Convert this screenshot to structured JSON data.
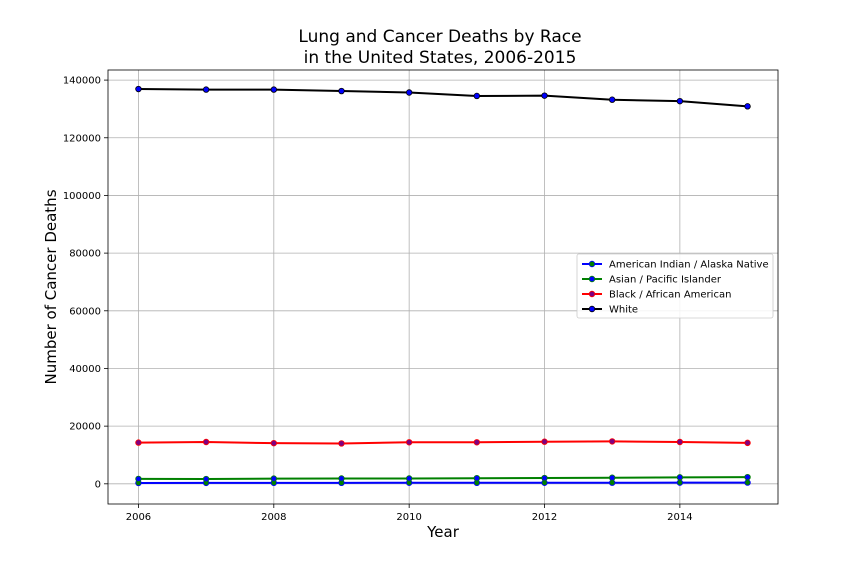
{
  "chart_data": {
    "type": "line",
    "title": [
      "Lung and Cancer Deaths by Race",
      "in the United States, 2006-2015"
    ],
    "xlabel": "Year",
    "ylabel": "Number of Cancer Deaths",
    "xlim": [
      2005.55,
      2015.45
    ],
    "ylim": [
      -7000,
      143500
    ],
    "x_ticks": [
      2006,
      2008,
      2010,
      2012,
      2014
    ],
    "y_ticks": [
      0,
      20000,
      40000,
      60000,
      80000,
      100000,
      120000,
      140000
    ],
    "grid": true,
    "legend_position": "center-right",
    "x": [
      2006,
      2007,
      2008,
      2009,
      2010,
      2011,
      2012,
      2013,
      2014,
      2015
    ],
    "series": [
      {
        "name": "American Indian / Alaska Native",
        "color": "#0000ff",
        "marker_color": "#008000",
        "values": [
          300,
          320,
          340,
          340,
          360,
          350,
          370,
          380,
          400,
          420
        ]
      },
      {
        "name": "Asian / Pacific Islander",
        "color": "#008000",
        "marker_color": "#0000ff",
        "values": [
          1700,
          1650,
          1800,
          1850,
          1850,
          1950,
          2000,
          2100,
          2250,
          2300
        ]
      },
      {
        "name": "Black / African American",
        "color": "#ff0000",
        "marker_color": "#800080",
        "values": [
          14300,
          14500,
          14100,
          14000,
          14400,
          14400,
          14600,
          14700,
          14500,
          14200
        ]
      },
      {
        "name": "White",
        "color": "#000000",
        "marker_color": "#0000ff",
        "values": [
          136900,
          136700,
          136700,
          136200,
          135700,
          134500,
          134600,
          133200,
          132700,
          130900
        ]
      }
    ]
  }
}
